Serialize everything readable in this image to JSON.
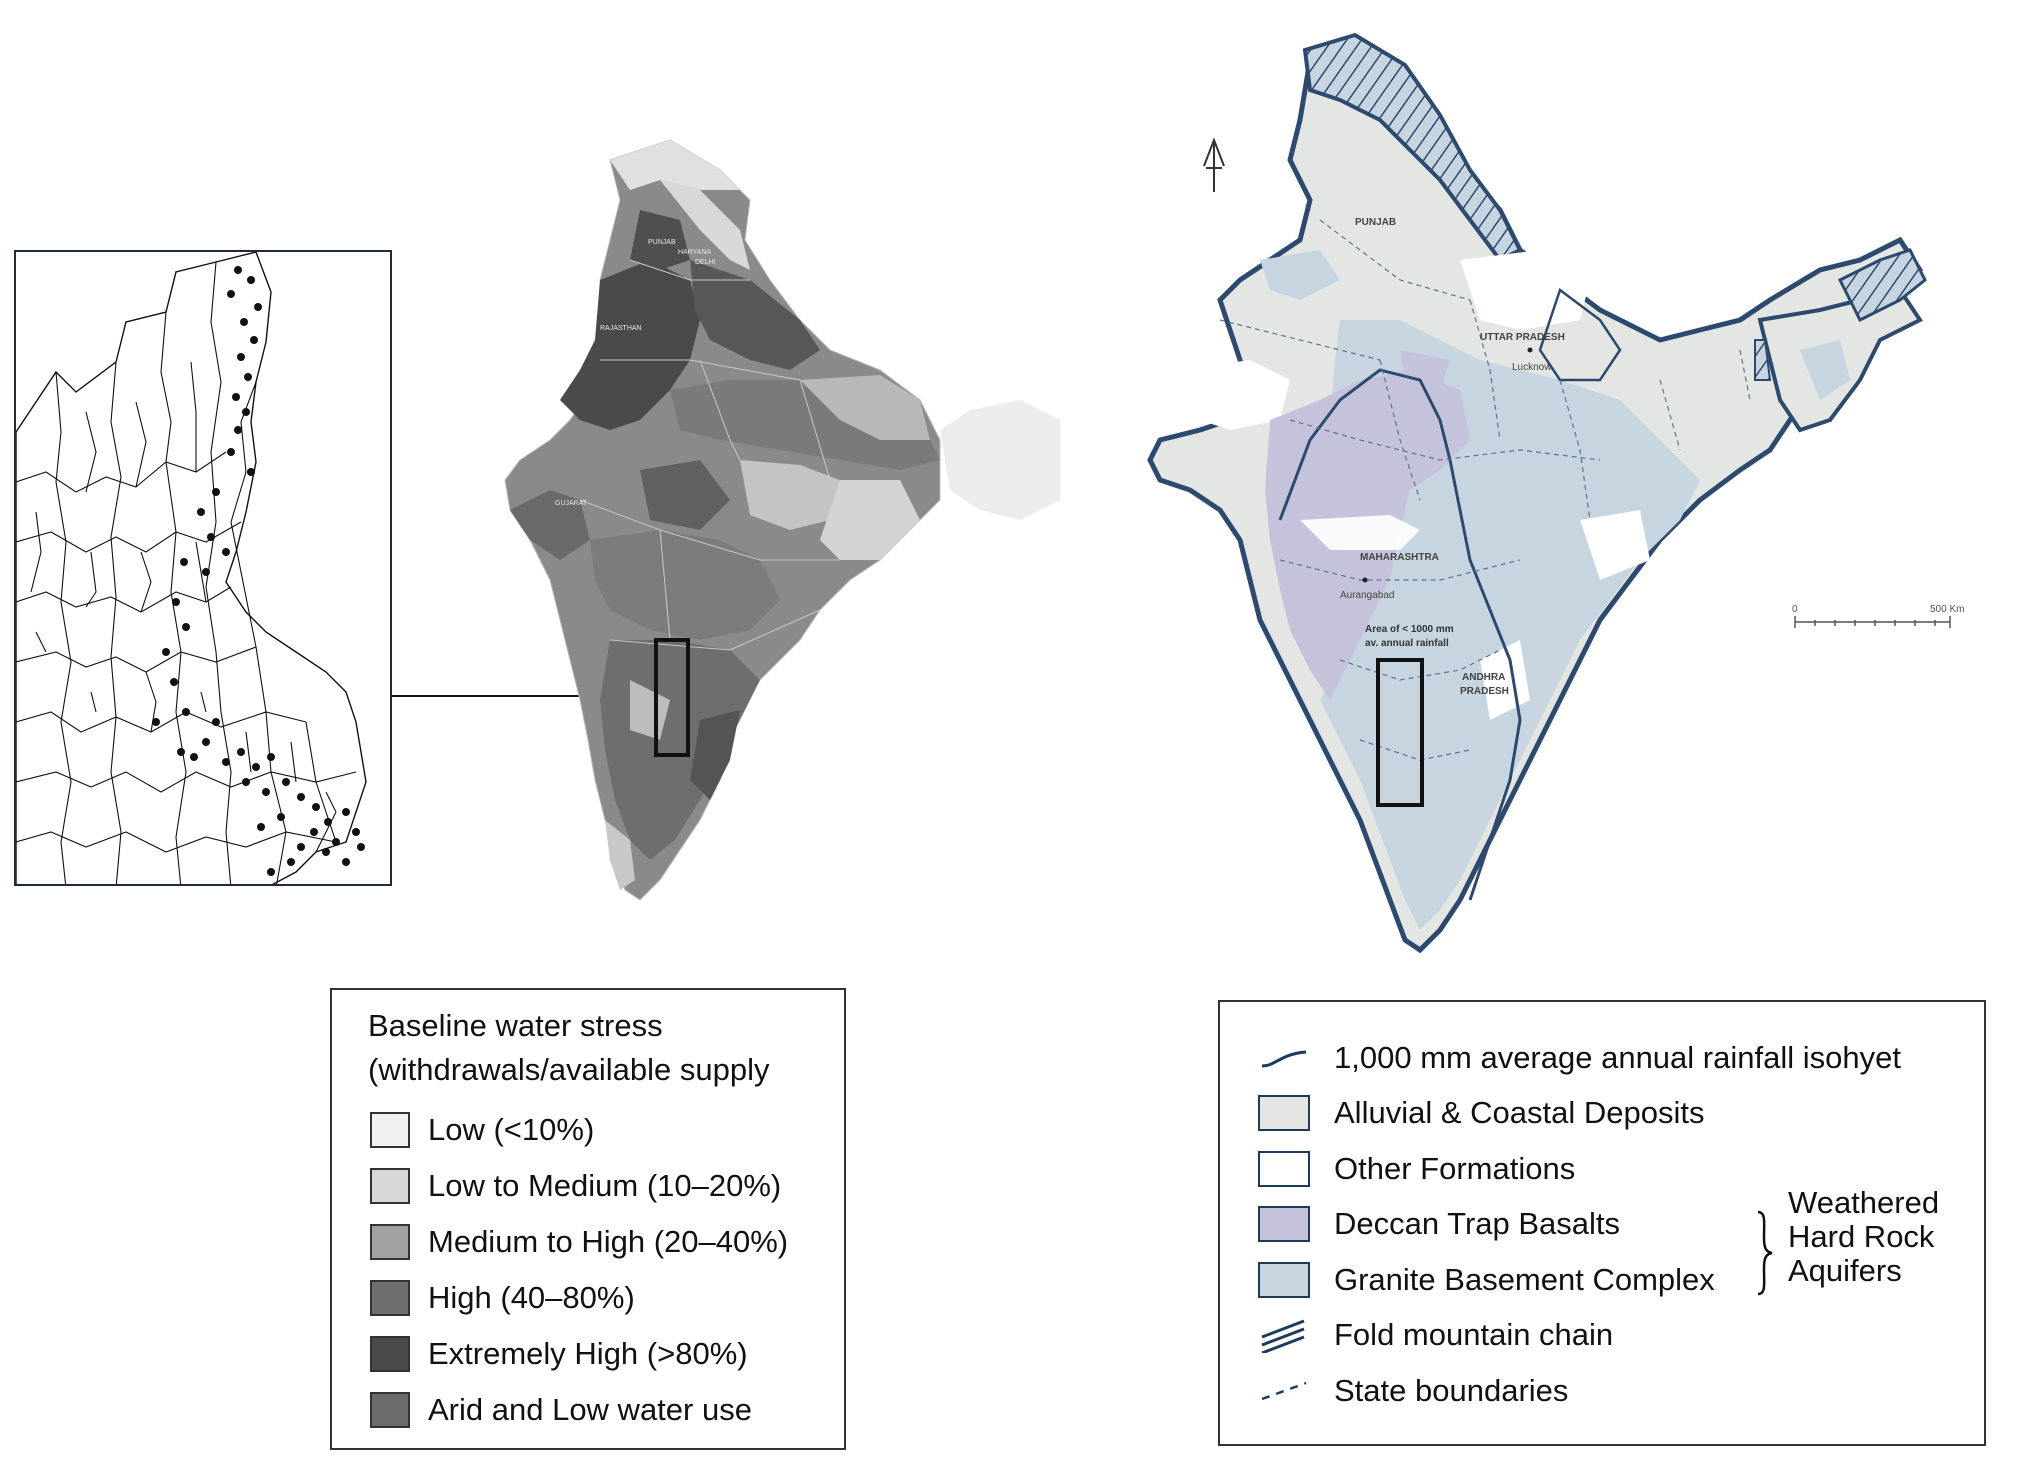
{
  "left_legend": {
    "title_line1": "Baseline water stress",
    "title_line2": "(withdrawals/available supply",
    "items": [
      {
        "label": "Low (<10%)",
        "color": "#f0f0f0"
      },
      {
        "label": "Low to Medium (10–20%)",
        "color": "#d8d8d8"
      },
      {
        "label": "Medium to High (20–40%)",
        "color": "#a3a1a2"
      },
      {
        "label": "High (40–80%)",
        "color": "#6f6f6f"
      },
      {
        "label": "Extremely High (>80%)",
        "color": "#4a4a4a"
      },
      {
        "label": "Arid and Low water use",
        "color": "#6b6b6b"
      }
    ]
  },
  "right_legend": {
    "items": [
      {
        "label": "1,000 mm average annual rainfall isohyet",
        "symbol": "isohyet-line"
      },
      {
        "label": "Alluvial & Coastal Deposits",
        "color": "#e4e6e4",
        "symbol": "swatch"
      },
      {
        "label": "Other Formations",
        "color": "#ffffff",
        "symbol": "swatch"
      },
      {
        "label": "Deccan Trap Basalts",
        "color": "#c5c3dc",
        "symbol": "swatch"
      },
      {
        "label": "Granite Basement Complex",
        "color": "#c6d5df",
        "symbol": "swatch"
      },
      {
        "label": "Fold mountain chain",
        "symbol": "hatch-lines"
      },
      {
        "label": "State boundaries",
        "symbol": "dashed-line"
      }
    ],
    "brace_label_line1": "Weathered",
    "brace_label_line2": "Hard Rock",
    "brace_label_line3": "Aquifers"
  },
  "left_map_labels": {
    "punjab": "PUNJAB",
    "haryana": "HARYANA",
    "delhi": "DELHI",
    "rajasthan": "RAJASTHAN",
    "gujarat": "GUJARAT"
  },
  "right_map_labels": {
    "punjab": "PUNJAB",
    "uttar_pradesh": "UTTAR PRADESH",
    "lucknow": "Lucknow",
    "maharashtra": "MAHARASHTRA",
    "aurangabad": "Aurangabad",
    "area_note_line1": "Area of < 1000 mm",
    "area_note_line2": "av. annual rainfall",
    "andhra_line1": "ANDHRA",
    "andhra_line2": "PRADESH"
  },
  "scale_bar": {
    "start_label": "0",
    "end_label": "500 Km"
  },
  "colors": {
    "outline_blue": "#2d4a6e",
    "legend_border": "#333333"
  }
}
